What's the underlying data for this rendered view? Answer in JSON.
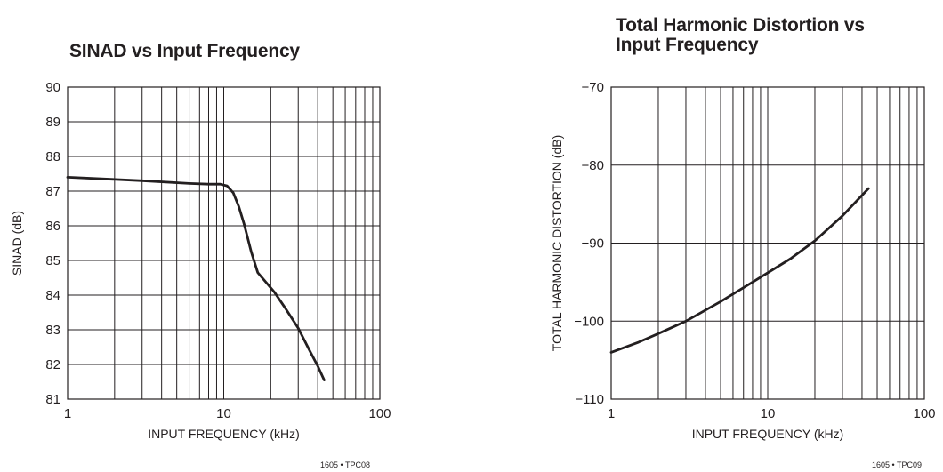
{
  "chart_data": [
    {
      "type": "line",
      "title_lines": [
        "SINAD vs Input Frequency"
      ],
      "xlabel": "INPUT FREQUENCY (kHz)",
      "ylabel": "SINAD (dB)",
      "x_scale": "log",
      "xlim": [
        1,
        100
      ],
      "ylim": [
        81,
        90
      ],
      "x_tick_labels": [
        {
          "value": 1,
          "label": "1"
        },
        {
          "value": 10,
          "label": "10"
        },
        {
          "value": 100,
          "label": "100"
        }
      ],
      "y_tick_labels": [
        {
          "value": 90,
          "label": "90"
        },
        {
          "value": 89,
          "label": "89"
        },
        {
          "value": 88,
          "label": "88"
        },
        {
          "value": 87,
          "label": "87"
        },
        {
          "value": 86,
          "label": "86"
        },
        {
          "value": 85,
          "label": "85"
        },
        {
          "value": 84,
          "label": "84"
        },
        {
          "value": 83,
          "label": "83"
        },
        {
          "value": 82,
          "label": "82"
        },
        {
          "value": 81,
          "label": "81"
        }
      ],
      "grid": true,
      "series": [
        {
          "x": [
            1,
            3,
            6,
            8,
            9.5,
            10.5,
            11.5,
            12.5,
            13.5,
            15,
            16.5,
            18,
            21,
            25,
            30,
            35,
            40,
            44
          ],
          "y": [
            87.4,
            87.3,
            87.22,
            87.2,
            87.2,
            87.15,
            86.95,
            86.55,
            86.05,
            85.25,
            84.65,
            84.45,
            84.1,
            83.6,
            83.05,
            82.45,
            81.95,
            81.55
          ]
        }
      ],
      "footer": "1605 • TPC08"
    },
    {
      "type": "line",
      "title_lines": [
        "Total Harmonic Distortion vs",
        "Input Frequency"
      ],
      "xlabel": "INPUT FREQUENCY (kHz)",
      "ylabel": "TOTAL HARMONIC DISTORTION (dB)",
      "x_scale": "log",
      "xlim": [
        1,
        100
      ],
      "ylim": [
        -110,
        -70
      ],
      "x_tick_labels": [
        {
          "value": 1,
          "label": "1"
        },
        {
          "value": 10,
          "label": "10"
        },
        {
          "value": 100,
          "label": "100"
        }
      ],
      "y_tick_labels": [
        {
          "value": -70,
          "label": "−70"
        },
        {
          "value": -80,
          "label": "−80"
        },
        {
          "value": -90,
          "label": "−90"
        },
        {
          "value": -100,
          "label": "−100"
        },
        {
          "value": -110,
          "label": "−110"
        }
      ],
      "grid": true,
      "series": [
        {
          "x": [
            1,
            1.5,
            2,
            3,
            5,
            8,
            14,
            20,
            30,
            44
          ],
          "y": [
            -104,
            -102.7,
            -101.6,
            -100,
            -97.5,
            -95,
            -92,
            -89.7,
            -86.5,
            -83
          ]
        }
      ],
      "footer": "1605 • TPC09"
    }
  ]
}
